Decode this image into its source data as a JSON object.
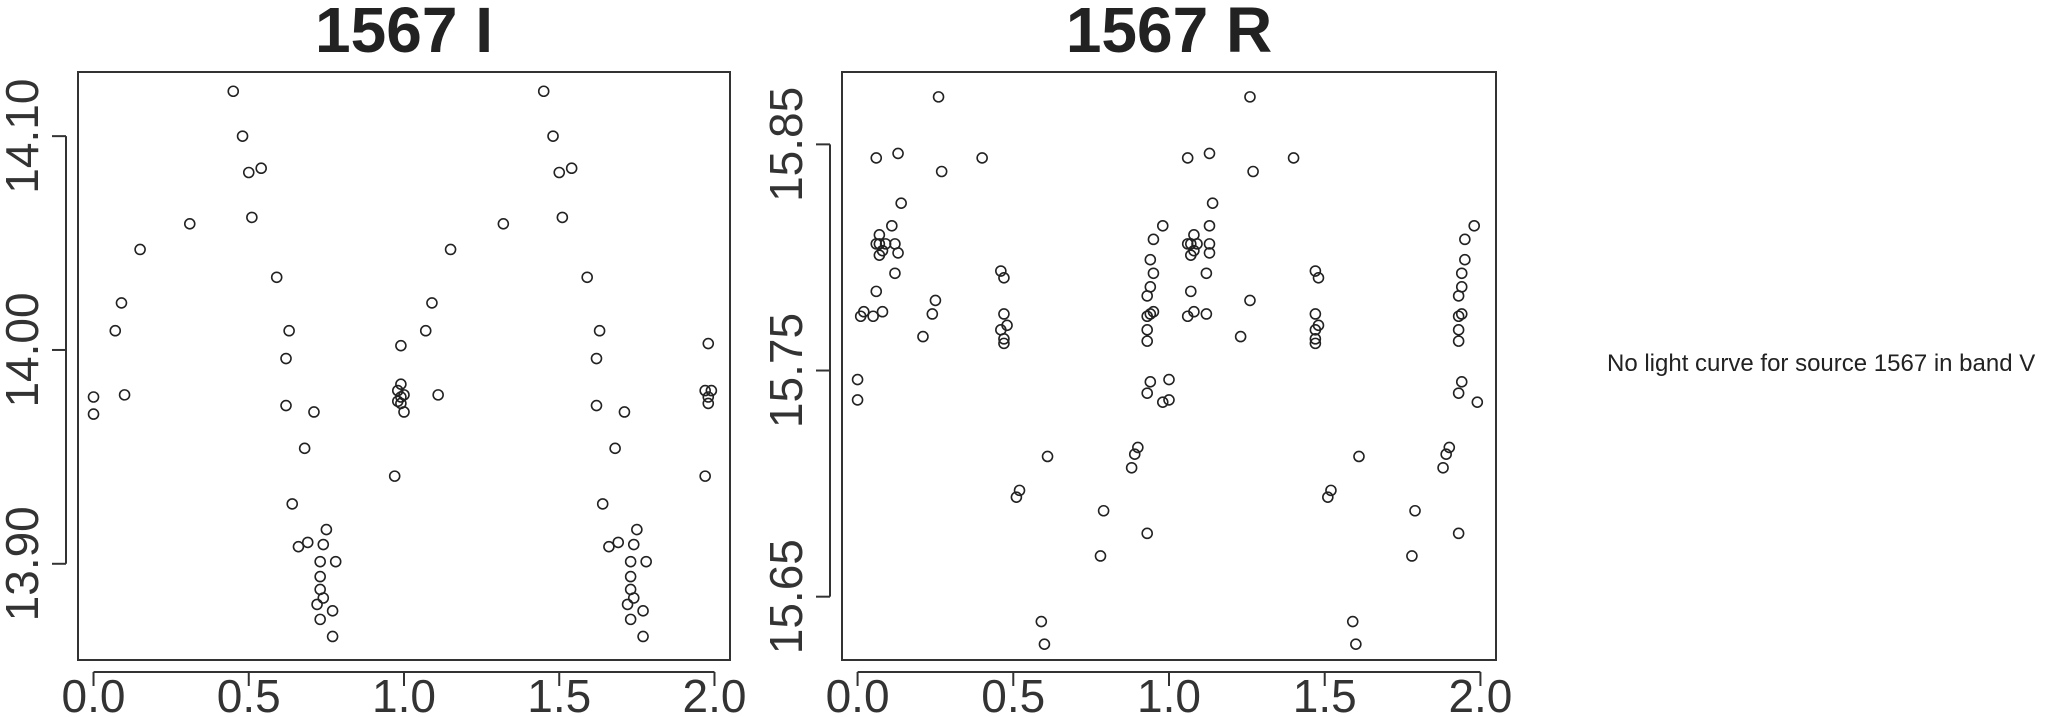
{
  "chart_data": [
    {
      "type": "scatter",
      "title": "1567 I",
      "xlabel": "",
      "ylabel": "",
      "xlim": [
        -0.05,
        2.05
      ],
      "ylim": [
        14.13,
        13.855
      ],
      "y_inverted": true,
      "x_ticks": [
        "0.0",
        "0.5",
        "1.0",
        "1.5",
        "2.0"
      ],
      "y_ticks": [
        "13.90",
        "14.00",
        "14.10"
      ],
      "points": [
        [
          0.0,
          13.97
        ],
        [
          0.0,
          13.978
        ],
        [
          0.1,
          13.979
        ],
        [
          0.07,
          14.009
        ],
        [
          0.09,
          14.022
        ],
        [
          0.15,
          14.047
        ],
        [
          0.31,
          14.059
        ],
        [
          0.51,
          14.062
        ],
        [
          0.5,
          14.083
        ],
        [
          0.54,
          14.085
        ],
        [
          0.48,
          14.1
        ],
        [
          0.45,
          14.121
        ],
        [
          0.59,
          14.034
        ],
        [
          0.63,
          14.009
        ],
        [
          0.62,
          13.996
        ],
        [
          0.62,
          13.974
        ],
        [
          0.68,
          13.954
        ],
        [
          0.71,
          13.971
        ],
        [
          0.64,
          13.928
        ],
        [
          0.66,
          13.908
        ],
        [
          0.69,
          13.91
        ],
        [
          0.74,
          13.909
        ],
        [
          0.75,
          13.916
        ],
        [
          0.73,
          13.901
        ],
        [
          0.73,
          13.894
        ],
        [
          0.73,
          13.888
        ],
        [
          0.74,
          13.884
        ],
        [
          0.72,
          13.881
        ],
        [
          0.77,
          13.878
        ],
        [
          0.73,
          13.874
        ],
        [
          0.77,
          13.866
        ],
        [
          0.78,
          13.901
        ],
        [
          0.97,
          13.941
        ],
        [
          0.99,
          13.975
        ],
        [
          0.98,
          13.981
        ],
        [
          0.99,
          13.978
        ],
        [
          1.0,
          13.971
        ],
        [
          1.0,
          13.979
        ],
        [
          0.98,
          13.976
        ],
        [
          0.99,
          13.984
        ],
        [
          0.99,
          14.002
        ],
        [
          1.11,
          13.979
        ],
        [
          1.07,
          14.009
        ],
        [
          1.09,
          14.022
        ],
        [
          1.15,
          14.047
        ],
        [
          1.32,
          14.059
        ],
        [
          1.51,
          14.062
        ],
        [
          1.5,
          14.083
        ],
        [
          1.54,
          14.085
        ],
        [
          1.48,
          14.1
        ],
        [
          1.45,
          14.121
        ],
        [
          1.59,
          14.034
        ],
        [
          1.63,
          14.009
        ],
        [
          1.62,
          13.996
        ],
        [
          1.62,
          13.974
        ],
        [
          1.68,
          13.954
        ],
        [
          1.71,
          13.971
        ],
        [
          1.64,
          13.928
        ],
        [
          1.66,
          13.908
        ],
        [
          1.69,
          13.91
        ],
        [
          1.74,
          13.909
        ],
        [
          1.75,
          13.916
        ],
        [
          1.73,
          13.901
        ],
        [
          1.73,
          13.894
        ],
        [
          1.73,
          13.888
        ],
        [
          1.74,
          13.884
        ],
        [
          1.72,
          13.881
        ],
        [
          1.77,
          13.878
        ],
        [
          1.73,
          13.874
        ],
        [
          1.77,
          13.866
        ],
        [
          1.78,
          13.901
        ],
        [
          1.97,
          13.941
        ],
        [
          1.98,
          13.975
        ],
        [
          1.97,
          13.981
        ],
        [
          1.99,
          13.981
        ],
        [
          1.98,
          13.978
        ],
        [
          1.98,
          14.003
        ]
      ]
    },
    {
      "type": "scatter",
      "title": "1567 R",
      "xlabel": "",
      "ylabel": "",
      "xlim": [
        -0.05,
        2.05
      ],
      "ylim": [
        15.882,
        15.622
      ],
      "y_inverted": true,
      "x_ticks": [
        "0.0",
        "0.5",
        "1.0",
        "1.5",
        "2.0"
      ],
      "y_ticks": [
        "15.65",
        "15.75",
        "15.85"
      ],
      "points": [
        [
          0.0,
          15.737
        ],
        [
          0.0,
          15.746
        ],
        [
          0.01,
          15.774
        ],
        [
          0.02,
          15.776
        ],
        [
          0.05,
          15.774
        ],
        [
          0.08,
          15.776
        ],
        [
          0.06,
          15.785
        ],
        [
          0.07,
          15.801
        ],
        [
          0.08,
          15.803
        ],
        [
          0.07,
          15.806
        ],
        [
          0.06,
          15.806
        ],
        [
          0.07,
          15.81
        ],
        [
          0.09,
          15.806
        ],
        [
          0.12,
          15.793
        ],
        [
          0.12,
          15.806
        ],
        [
          0.13,
          15.802
        ],
        [
          0.11,
          15.814
        ],
        [
          0.14,
          15.824
        ],
        [
          0.13,
          15.846
        ],
        [
          0.06,
          15.844
        ],
        [
          0.21,
          15.765
        ],
        [
          0.24,
          15.775
        ],
        [
          0.25,
          15.781
        ],
        [
          0.27,
          15.838
        ],
        [
          0.26,
          15.871
        ],
        [
          0.4,
          15.844
        ],
        [
          0.47,
          15.762
        ],
        [
          0.47,
          15.764
        ],
        [
          0.46,
          15.768
        ],
        [
          0.48,
          15.77
        ],
        [
          0.47,
          15.775
        ],
        [
          0.47,
          15.791
        ],
        [
          0.46,
          15.794
        ],
        [
          0.51,
          15.694
        ],
        [
          0.52,
          15.697
        ],
        [
          0.6,
          15.629
        ],
        [
          0.59,
          15.639
        ],
        [
          0.61,
          15.712
        ],
        [
          0.78,
          15.668
        ],
        [
          0.79,
          15.688
        ],
        [
          0.88,
          15.707
        ],
        [
          0.89,
          15.713
        ],
        [
          0.9,
          15.716
        ],
        [
          0.93,
          15.678
        ],
        [
          0.93,
          15.74
        ],
        [
          0.94,
          15.745
        ],
        [
          0.98,
          15.736
        ],
        [
          1.0,
          15.737
        ],
        [
          1.0,
          15.746
        ],
        [
          0.93,
          15.763
        ],
        [
          0.93,
          15.768
        ],
        [
          0.93,
          15.774
        ],
        [
          0.94,
          15.775
        ],
        [
          0.95,
          15.776
        ],
        [
          0.93,
          15.783
        ],
        [
          0.94,
          15.787
        ],
        [
          0.95,
          15.793
        ],
        [
          0.94,
          15.799
        ],
        [
          0.95,
          15.808
        ],
        [
          0.98,
          15.814
        ],
        [
          1.06,
          15.844
        ],
        [
          1.13,
          15.846
        ],
        [
          1.14,
          15.824
        ],
        [
          1.13,
          15.814
        ],
        [
          1.06,
          15.774
        ],
        [
          1.08,
          15.776
        ],
        [
          1.07,
          15.785
        ],
        [
          1.07,
          15.801
        ],
        [
          1.08,
          15.803
        ],
        [
          1.07,
          15.806
        ],
        [
          1.06,
          15.806
        ],
        [
          1.08,
          15.81
        ],
        [
          1.09,
          15.806
        ],
        [
          1.12,
          15.793
        ],
        [
          1.13,
          15.806
        ],
        [
          1.13,
          15.802
        ],
        [
          1.12,
          15.775
        ],
        [
          1.26,
          15.781
        ],
        [
          1.23,
          15.765
        ],
        [
          1.27,
          15.838
        ],
        [
          1.26,
          15.871
        ],
        [
          1.4,
          15.844
        ],
        [
          1.47,
          15.762
        ],
        [
          1.47,
          15.764
        ],
        [
          1.47,
          15.768
        ],
        [
          1.48,
          15.77
        ],
        [
          1.47,
          15.775
        ],
        [
          1.48,
          15.791
        ],
        [
          1.47,
          15.794
        ],
        [
          1.51,
          15.694
        ],
        [
          1.52,
          15.697
        ],
        [
          1.6,
          15.629
        ],
        [
          1.59,
          15.639
        ],
        [
          1.61,
          15.712
        ],
        [
          1.78,
          15.668
        ],
        [
          1.79,
          15.688
        ],
        [
          1.88,
          15.707
        ],
        [
          1.89,
          15.713
        ],
        [
          1.9,
          15.716
        ],
        [
          1.93,
          15.678
        ],
        [
          1.93,
          15.74
        ],
        [
          1.94,
          15.745
        ],
        [
          1.99,
          15.736
        ],
        [
          1.93,
          15.763
        ],
        [
          1.93,
          15.768
        ],
        [
          1.93,
          15.774
        ],
        [
          1.94,
          15.775
        ],
        [
          1.93,
          15.783
        ],
        [
          1.94,
          15.787
        ],
        [
          1.94,
          15.793
        ],
        [
          1.95,
          15.799
        ],
        [
          1.95,
          15.808
        ],
        [
          1.98,
          15.814
        ]
      ]
    }
  ],
  "message": "No light curve for source 1567 in band V"
}
